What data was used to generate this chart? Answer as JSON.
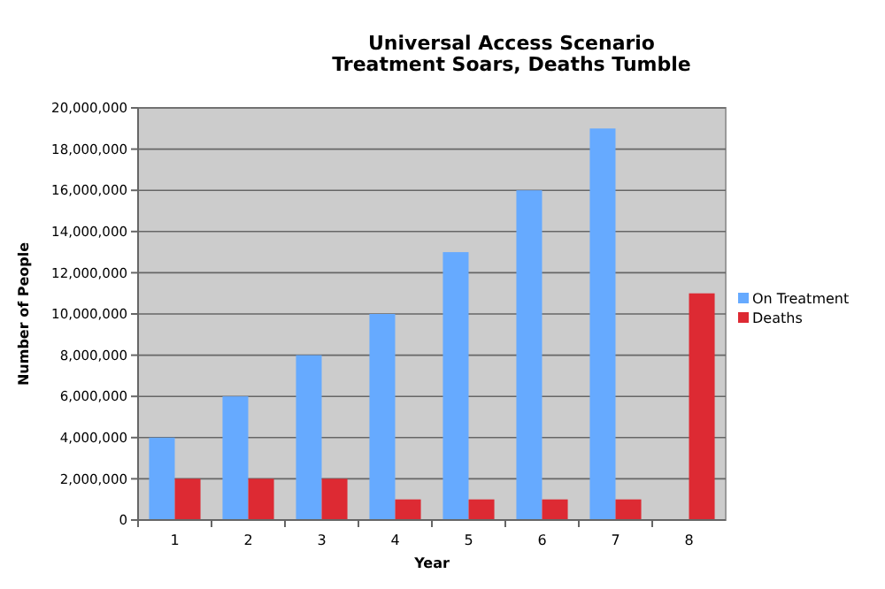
{
  "chart_data": {
    "type": "bar",
    "title": "Universal Access Scenario",
    "subtitle": "Treatment Soars, Deaths Tumble",
    "xlabel": "Year",
    "ylabel": "Number of People",
    "categories": [
      "1",
      "2",
      "3",
      "4",
      "5",
      "6",
      "7",
      "8"
    ],
    "series": [
      {
        "name": "On Treatment",
        "color": "#66aaff",
        "values": [
          4000000,
          6000000,
          8000000,
          10000000,
          13000000,
          16000000,
          19000000,
          null
        ]
      },
      {
        "name": "Deaths",
        "color": "#dd2a33",
        "values": [
          2000000,
          2000000,
          2000000,
          1000000,
          1000000,
          1000000,
          1000000,
          11000000
        ]
      }
    ],
    "ylim": [
      0,
      20000000
    ],
    "yticks": [
      {
        "value": 0,
        "label": "0"
      },
      {
        "value": 2000000,
        "label": "2,000,000"
      },
      {
        "value": 4000000,
        "label": "4,000,000"
      },
      {
        "value": 6000000,
        "label": "6,000,000"
      },
      {
        "value": 8000000,
        "label": "8,000,000"
      },
      {
        "value": 10000000,
        "label": "10,000,000"
      },
      {
        "value": 12000000,
        "label": "12,000,000"
      },
      {
        "value": 14000000,
        "label": "14,000,000"
      },
      {
        "value": 16000000,
        "label": "16,000,000"
      },
      {
        "value": 18000000,
        "label": "18,000,000"
      },
      {
        "value": 20000000,
        "label": "20,000,000"
      }
    ],
    "grid": "y",
    "legend": "right"
  }
}
